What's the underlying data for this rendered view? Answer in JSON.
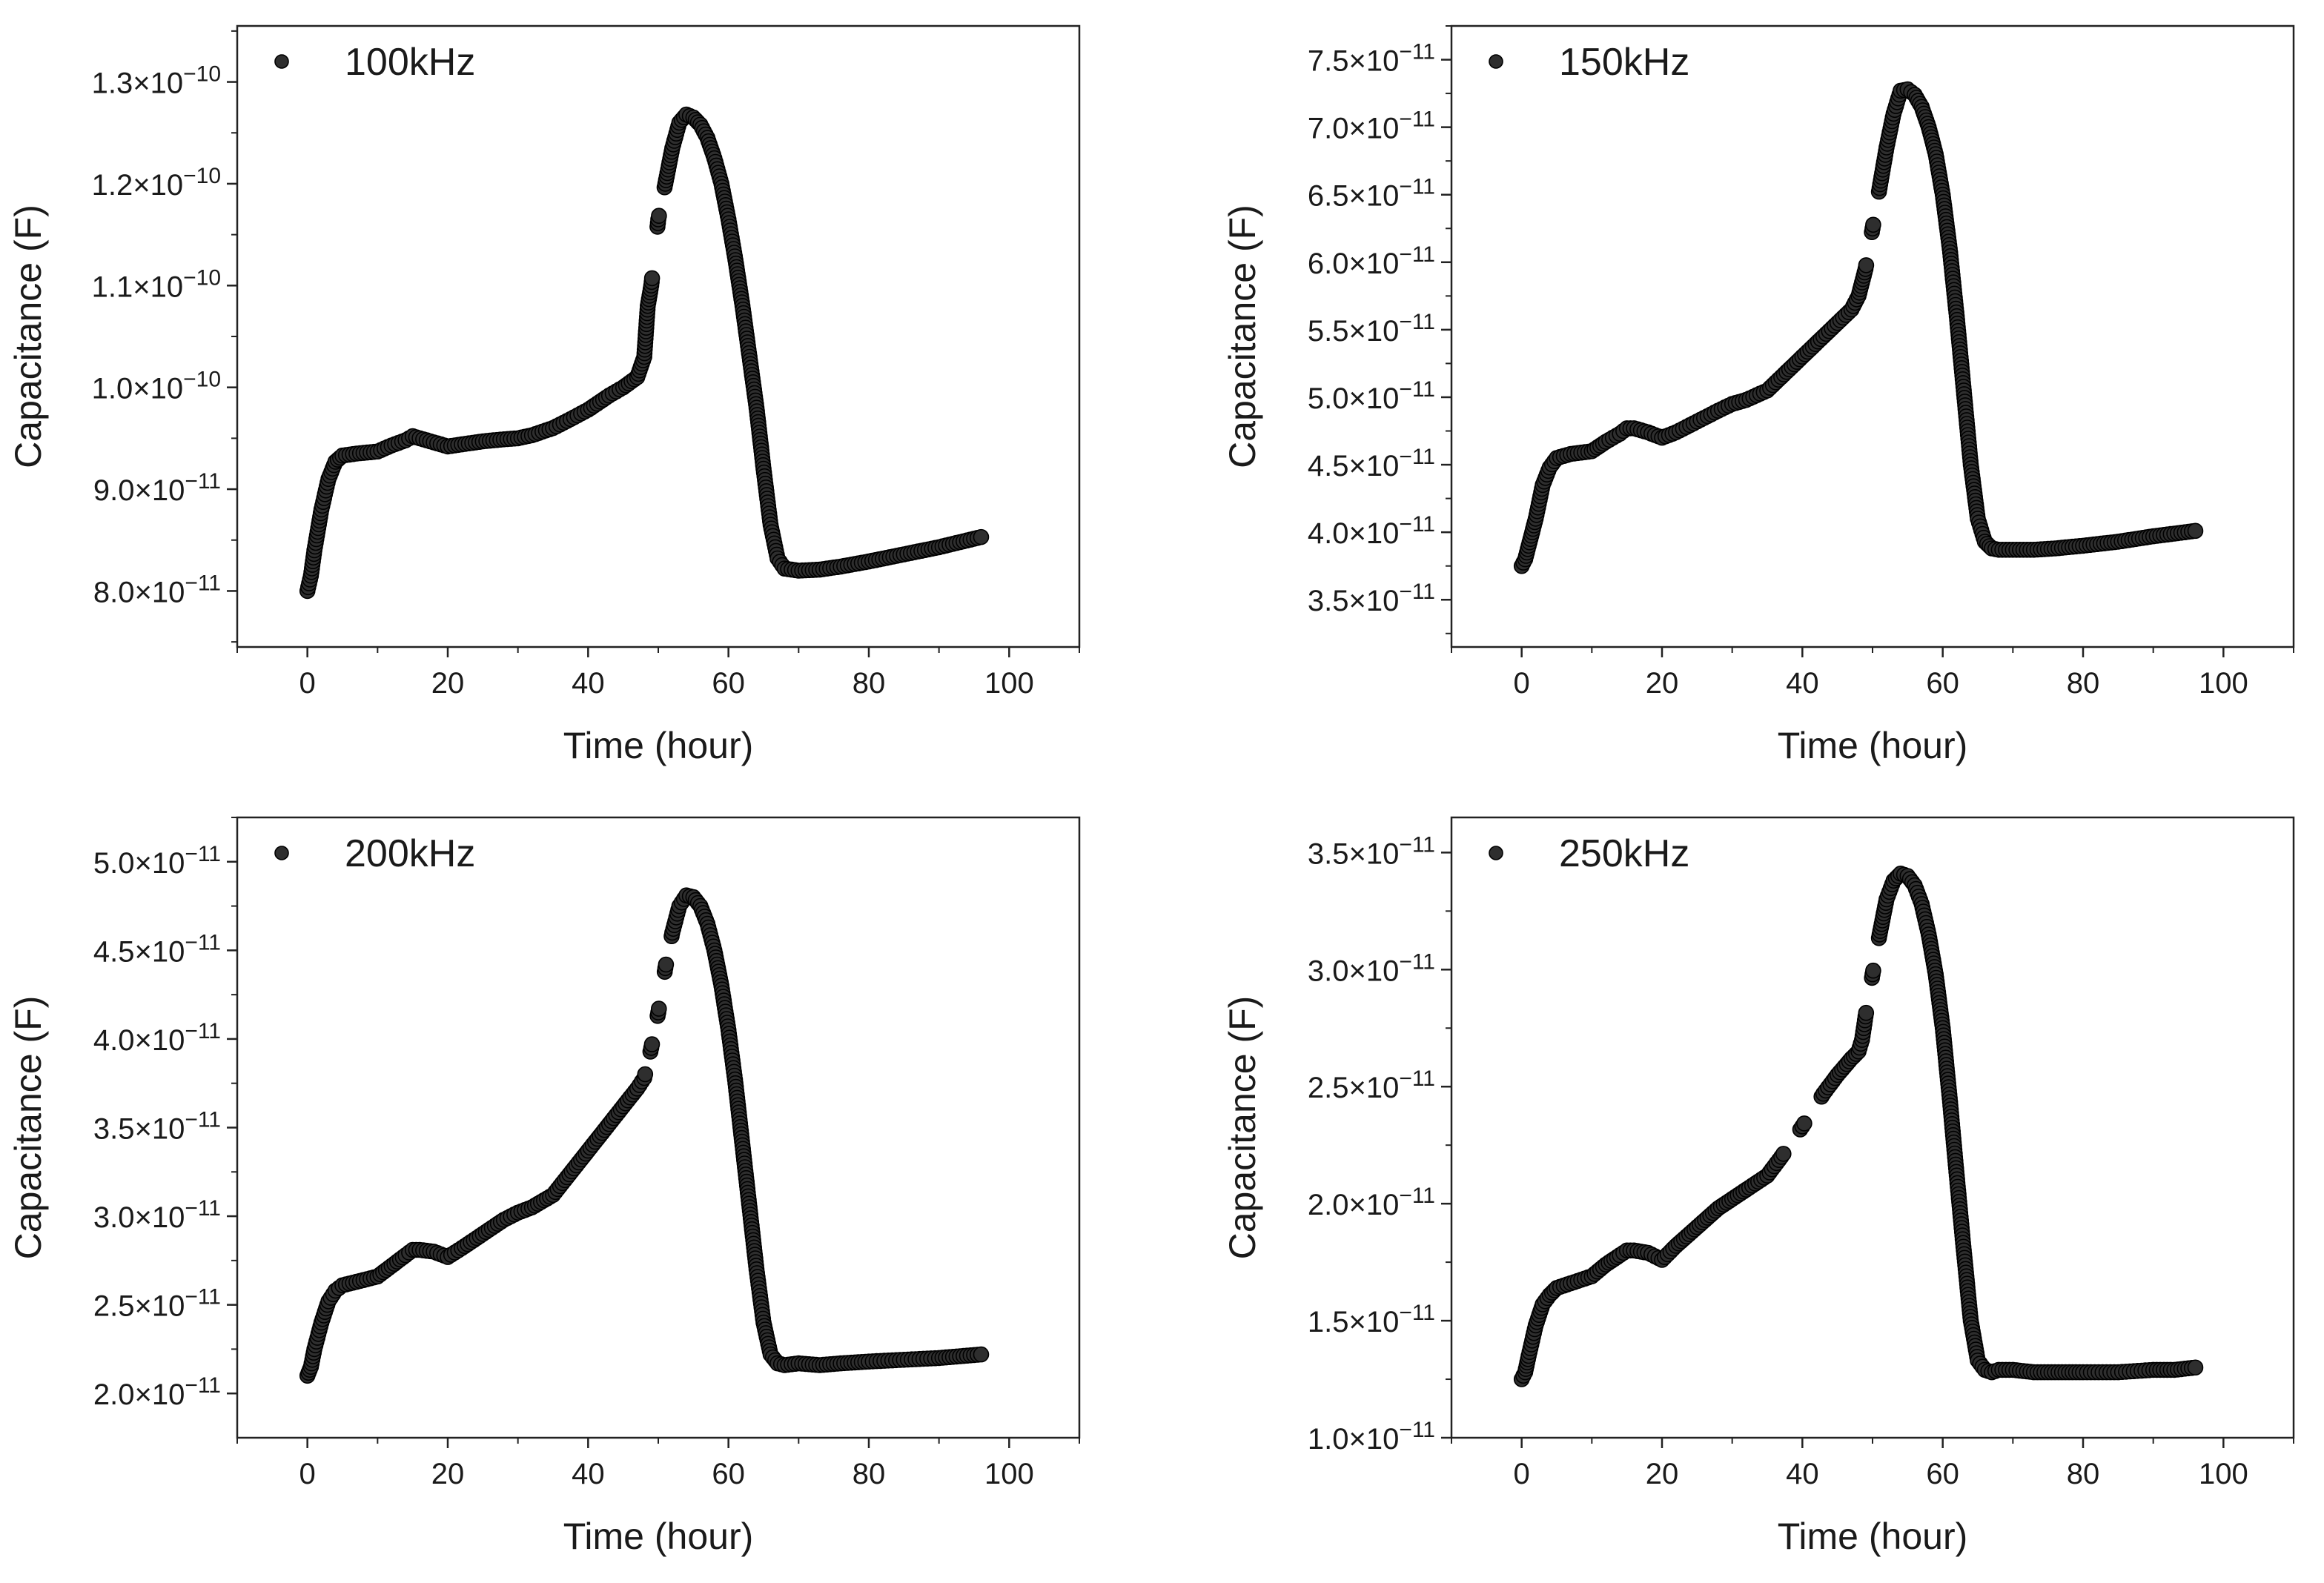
{
  "figure": {
    "layout": "2x2 grid of scatter plots"
  },
  "chart_data": [
    {
      "type": "scatter",
      "title": "",
      "legend": "100kHz",
      "legend_position": "top-left",
      "xlabel": "Time (hour)",
      "ylabel": "Capacitance (F)",
      "xlim": [
        -10,
        110
      ],
      "ylim": [
        7.45e-11,
        1.355e-10
      ],
      "x_ticks": [
        0,
        20,
        40,
        60,
        80,
        100
      ],
      "x_tick_labels": [
        "0",
        "20",
        "40",
        "60",
        "80",
        "100"
      ],
      "y_ticks": [
        8e-11,
        9e-11,
        1e-10,
        1.1e-10,
        1.2e-10,
        1.3e-10
      ],
      "y_tick_labels": [
        {
          "mantissa": "8.0",
          "exponent": "-11"
        },
        {
          "mantissa": "9.0",
          "exponent": "-11"
        },
        {
          "mantissa": "1.0",
          "exponent": "-10"
        },
        {
          "mantissa": "1.1",
          "exponent": "-10"
        },
        {
          "mantissa": "1.2",
          "exponent": "-10"
        },
        {
          "mantissa": "1.3",
          "exponent": "-10"
        }
      ],
      "y_minor_step": 5e-12,
      "series": [
        {
          "name": "100kHz",
          "x": [
            0,
            0.5,
            1,
            2,
            3,
            4,
            5,
            7,
            10,
            12,
            14,
            15,
            16,
            18,
            20,
            22,
            25,
            28,
            30,
            32,
            35,
            37,
            40,
            43,
            45,
            47,
            48,
            48.5,
            49,
            50,
            51,
            52,
            53,
            54,
            55,
            56,
            57,
            58,
            59,
            60,
            61,
            62,
            63,
            64,
            65,
            66,
            67,
            68,
            70,
            73,
            76,
            80,
            85,
            90,
            93,
            96
          ],
          "y": [
            8e-11,
            8.15e-11,
            8.4e-11,
            8.8e-11,
            9.1e-11,
            9.27e-11,
            9.33e-11,
            9.35e-11,
            9.37e-11,
            9.43e-11,
            9.48e-11,
            9.52e-11,
            9.5e-11,
            9.46e-11,
            9.42e-11,
            9.44e-11,
            9.47e-11,
            9.49e-11,
            9.5e-11,
            9.53e-11,
            9.6e-11,
            9.67e-11,
            9.78e-11,
            9.92e-11,
            1e-10,
            1.01e-10,
            1.03e-10,
            1.08e-10,
            1.1e-10,
            1.165e-10,
            1.2e-10,
            1.235e-10,
            1.26e-10,
            1.268e-10,
            1.265e-10,
            1.258e-10,
            1.245e-10,
            1.225e-10,
            1.2e-10,
            1.165e-10,
            1.125e-10,
            1.08e-10,
            1.03e-10,
            9.8e-11,
            9.2e-11,
            8.65e-11,
            8.32e-11,
            8.22e-11,
            8.2e-11,
            8.21e-11,
            8.24e-11,
            8.29e-11,
            8.36e-11,
            8.43e-11,
            8.48e-11,
            8.53e-11
          ]
        }
      ]
    },
    {
      "type": "scatter",
      "title": "",
      "legend": "150kHz",
      "legend_position": "top-left",
      "xlabel": "Time (hour)",
      "ylabel": "Capacitance (F)",
      "xlim": [
        -10,
        110
      ],
      "ylim": [
        3.15e-11,
        7.75e-11
      ],
      "x_ticks": [
        0,
        20,
        40,
        60,
        80,
        100
      ],
      "x_tick_labels": [
        "0",
        "20",
        "40",
        "60",
        "80",
        "100"
      ],
      "y_ticks": [
        3.5e-11,
        4e-11,
        4.5e-11,
        5e-11,
        5.5e-11,
        6e-11,
        6.5e-11,
        7e-11,
        7.5e-11
      ],
      "y_tick_labels": [
        {
          "mantissa": "3.5",
          "exponent": "-11"
        },
        {
          "mantissa": "4.0",
          "exponent": "-11"
        },
        {
          "mantissa": "4.5",
          "exponent": "-11"
        },
        {
          "mantissa": "5.0",
          "exponent": "-11"
        },
        {
          "mantissa": "5.5",
          "exponent": "-11"
        },
        {
          "mantissa": "6.0",
          "exponent": "-11"
        },
        {
          "mantissa": "6.5",
          "exponent": "-11"
        },
        {
          "mantissa": "7.0",
          "exponent": "-11"
        },
        {
          "mantissa": "7.5",
          "exponent": "-11"
        }
      ],
      "y_minor_step": 2.5e-12,
      "series": [
        {
          "name": "150kHz",
          "x": [
            0,
            0.5,
            1,
            2,
            3,
            4,
            5,
            7,
            10,
            12,
            14,
            15,
            16,
            18,
            20,
            22,
            25,
            28,
            30,
            32,
            35,
            37,
            40,
            43,
            45,
            47,
            48,
            48.5,
            49,
            50,
            51,
            52,
            53,
            54,
            55,
            56,
            57,
            58,
            59,
            60,
            61,
            62,
            63,
            64,
            65,
            66,
            67,
            68,
            70,
            73,
            76,
            80,
            85,
            90,
            93,
            96
          ],
          "y": [
            3.75e-11,
            3.8e-11,
            3.9e-11,
            4.1e-11,
            4.35e-11,
            4.48e-11,
            4.55e-11,
            4.58e-11,
            4.6e-11,
            4.67e-11,
            4.73e-11,
            4.77e-11,
            4.77e-11,
            4.74e-11,
            4.7e-11,
            4.74e-11,
            4.82e-11,
            4.9e-11,
            4.95e-11,
            4.98e-11,
            5.05e-11,
            5.15e-11,
            5.3e-11,
            5.45e-11,
            5.55e-11,
            5.65e-11,
            5.75e-11,
            5.85e-11,
            5.95e-11,
            6.25e-11,
            6.55e-11,
            6.85e-11,
            7.1e-11,
            7.27e-11,
            7.28e-11,
            7.24e-11,
            7.15e-11,
            7e-11,
            6.8e-11,
            6.5e-11,
            6.1e-11,
            5.6e-11,
            5.05e-11,
            4.5e-11,
            4.1e-11,
            3.93e-11,
            3.88e-11,
            3.87e-11,
            3.87e-11,
            3.87e-11,
            3.88e-11,
            3.9e-11,
            3.93e-11,
            3.97e-11,
            3.99e-11,
            4.01e-11
          ]
        }
      ]
    },
    {
      "type": "scatter",
      "title": "",
      "legend": "200kHz",
      "legend_position": "top-left",
      "xlabel": "Time (hour)",
      "ylabel": "Capacitance (F)",
      "xlim": [
        -10,
        110
      ],
      "ylim": [
        1.75e-11,
        5.25e-11
      ],
      "x_ticks": [
        0,
        20,
        40,
        60,
        80,
        100
      ],
      "x_tick_labels": [
        "0",
        "20",
        "40",
        "60",
        "80",
        "100"
      ],
      "y_ticks": [
        2e-11,
        2.5e-11,
        3e-11,
        3.5e-11,
        4e-11,
        4.5e-11,
        5e-11
      ],
      "y_tick_labels": [
        {
          "mantissa": "2.0",
          "exponent": "-11"
        },
        {
          "mantissa": "2.5",
          "exponent": "-11"
        },
        {
          "mantissa": "3.0",
          "exponent": "-11"
        },
        {
          "mantissa": "3.5",
          "exponent": "-11"
        },
        {
          "mantissa": "4.0",
          "exponent": "-11"
        },
        {
          "mantissa": "4.5",
          "exponent": "-11"
        },
        {
          "mantissa": "5.0",
          "exponent": "-11"
        }
      ],
      "y_minor_step": 2.5e-12,
      "series": [
        {
          "name": "200kHz",
          "x": [
            0,
            0.5,
            1,
            2,
            3,
            4,
            5,
            7,
            10,
            12,
            14,
            15,
            16,
            18,
            20,
            22,
            25,
            28,
            30,
            32,
            35,
            37,
            40,
            43,
            45,
            47,
            48,
            49,
            50,
            51,
            52,
            53,
            54,
            55,
            56,
            57,
            58,
            59,
            60,
            61,
            62,
            63,
            64,
            65,
            66,
            67,
            68,
            70,
            73,
            76,
            80,
            85,
            90,
            93,
            96
          ],
          "y": [
            2.1e-11,
            2.15e-11,
            2.25e-11,
            2.4e-11,
            2.52e-11,
            2.58e-11,
            2.61e-11,
            2.63e-11,
            2.66e-11,
            2.72e-11,
            2.78e-11,
            2.81e-11,
            2.81e-11,
            2.8e-11,
            2.77e-11,
            2.82e-11,
            2.9e-11,
            2.98e-11,
            3.02e-11,
            3.05e-11,
            3.12e-11,
            3.22e-11,
            3.37e-11,
            3.52e-11,
            3.62e-11,
            3.72e-11,
            3.78e-11,
            3.95e-11,
            4.15e-11,
            4.4e-11,
            4.6e-11,
            4.75e-11,
            4.81e-11,
            4.8e-11,
            4.75e-11,
            4.65e-11,
            4.5e-11,
            4.3e-11,
            4.05e-11,
            3.75e-11,
            3.4e-11,
            3.05e-11,
            2.7e-11,
            2.4e-11,
            2.22e-11,
            2.17e-11,
            2.16e-11,
            2.17e-11,
            2.16e-11,
            2.17e-11,
            2.18e-11,
            2.19e-11,
            2.2e-11,
            2.21e-11,
            2.22e-11
          ]
        }
      ]
    },
    {
      "type": "scatter",
      "title": "",
      "legend": "250kHz",
      "legend_position": "top-left",
      "xlabel": "Time (hour)",
      "ylabel": "Capacitance (F)",
      "xlim": [
        -10,
        110
      ],
      "ylim": [
        1e-11,
        3.65e-11
      ],
      "x_ticks": [
        0,
        20,
        40,
        60,
        80,
        100
      ],
      "x_tick_labels": [
        "0",
        "20",
        "40",
        "60",
        "80",
        "100"
      ],
      "y_ticks": [
        1e-11,
        1.5e-11,
        2e-11,
        2.5e-11,
        3e-11,
        3.5e-11
      ],
      "y_tick_labels": [
        {
          "mantissa": "1.0",
          "exponent": "-11"
        },
        {
          "mantissa": "1.5",
          "exponent": "-11"
        },
        {
          "mantissa": "2.0",
          "exponent": "-11"
        },
        {
          "mantissa": "2.5",
          "exponent": "-11"
        },
        {
          "mantissa": "3.0",
          "exponent": "-11"
        },
        {
          "mantissa": "3.5",
          "exponent": "-11"
        }
      ],
      "y_minor_step": 2.5e-12,
      "series": [
        {
          "name": "250kHz",
          "x": [
            0,
            0.5,
            1,
            2,
            3,
            4,
            5,
            7,
            10,
            12,
            14,
            15,
            16,
            18,
            20,
            22,
            25,
            28,
            30,
            32,
            35,
            37,
            40,
            43,
            45,
            47,
            48,
            48.5,
            49,
            50,
            51,
            52,
            53,
            54,
            55,
            56,
            57,
            58,
            59,
            60,
            61,
            62,
            63,
            64,
            65,
            66,
            67,
            68,
            70,
            73,
            76,
            80,
            85,
            90,
            93,
            96
          ],
          "y": [
            1.25e-11,
            1.28e-11,
            1.35e-11,
            1.48e-11,
            1.57e-11,
            1.61e-11,
            1.64e-11,
            1.66e-11,
            1.69e-11,
            1.74e-11,
            1.78e-11,
            1.8e-11,
            1.8e-11,
            1.79e-11,
            1.76e-11,
            1.82e-11,
            1.9e-11,
            1.98e-11,
            2.02e-11,
            2.06e-11,
            2.12e-11,
            2.2e-11,
            2.33e-11,
            2.47e-11,
            2.55e-11,
            2.62e-11,
            2.65e-11,
            2.7e-11,
            2.8e-11,
            2.98e-11,
            3.15e-11,
            3.3e-11,
            3.38e-11,
            3.41e-11,
            3.4e-11,
            3.36e-11,
            3.28e-11,
            3.15e-11,
            2.98e-11,
            2.75e-11,
            2.45e-11,
            2.12e-11,
            1.8e-11,
            1.5e-11,
            1.33e-11,
            1.29e-11,
            1.28e-11,
            1.29e-11,
            1.29e-11,
            1.28e-11,
            1.28e-11,
            1.28e-11,
            1.28e-11,
            1.29e-11,
            1.29e-11,
            1.3e-11
          ]
        }
      ]
    }
  ]
}
